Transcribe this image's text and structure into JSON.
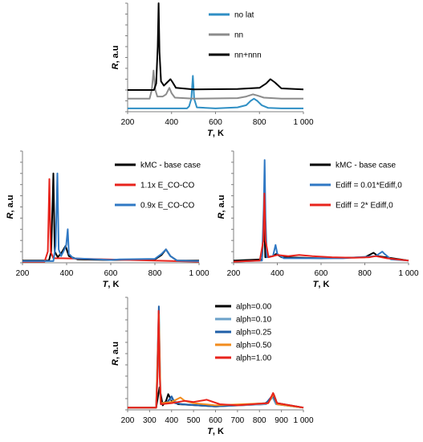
{
  "chart_data": [
    {
      "type": "line",
      "xlabel_italic": "T",
      "xlabel_unit": ", K",
      "ylabel_italic": "R",
      "ylabel_unit": ", a.u",
      "xlim": [
        200,
        1000
      ],
      "x_ticks": [
        "200",
        "400",
        "600",
        "800",
        "1 000"
      ],
      "y_ticks_labeled": false,
      "legend_position": "top-right",
      "series": [
        {
          "name": "no lat",
          "color": "#2f8fc4",
          "width": 2,
          "points": [
            [
              200,
              0.03
            ],
            [
              470,
              0.03
            ],
            [
              480,
              0.05
            ],
            [
              490,
              0.12
            ],
            [
              497,
              0.33
            ],
            [
              503,
              0.12
            ],
            [
              515,
              0.04
            ],
            [
              600,
              0.03
            ],
            [
              700,
              0.04
            ],
            [
              740,
              0.06
            ],
            [
              760,
              0.1
            ],
            [
              775,
              0.12
            ],
            [
              790,
              0.1
            ],
            [
              810,
              0.06
            ],
            [
              840,
              0.035
            ],
            [
              900,
              0.03
            ],
            [
              1000,
              0.03
            ]
          ]
        },
        {
          "name": "nn",
          "color": "#8c8c8c",
          "width": 2,
          "points": [
            [
              200,
              0.12
            ],
            [
              300,
              0.12
            ],
            [
              310,
              0.2
            ],
            [
              318,
              0.38
            ],
            [
              326,
              0.2
            ],
            [
              335,
              0.14
            ],
            [
              360,
              0.14
            ],
            [
              375,
              0.16
            ],
            [
              390,
              0.22
            ],
            [
              400,
              0.17
            ],
            [
              415,
              0.13
            ],
            [
              500,
              0.12
            ],
            [
              700,
              0.125
            ],
            [
              740,
              0.14
            ],
            [
              770,
              0.16
            ],
            [
              790,
              0.15
            ],
            [
              820,
              0.13
            ],
            [
              900,
              0.12
            ],
            [
              1000,
              0.12
            ]
          ]
        },
        {
          "name": "nn+nnn",
          "color": "#000000",
          "width": 2,
          "points": [
            [
              200,
              0.2
            ],
            [
              320,
              0.2
            ],
            [
              330,
              0.26
            ],
            [
              337,
              0.6
            ],
            [
              341,
              1.0
            ],
            [
              345,
              0.55
            ],
            [
              352,
              0.28
            ],
            [
              365,
              0.24
            ],
            [
              380,
              0.27
            ],
            [
              395,
              0.3
            ],
            [
              405,
              0.27
            ],
            [
              420,
              0.22
            ],
            [
              500,
              0.205
            ],
            [
              700,
              0.21
            ],
            [
              800,
              0.22
            ],
            [
              830,
              0.26
            ],
            [
              850,
              0.3
            ],
            [
              870,
              0.27
            ],
            [
              900,
              0.215
            ],
            [
              1000,
              0.205
            ]
          ]
        }
      ]
    },
    {
      "type": "line",
      "xlabel_italic": "T",
      "xlabel_unit": ", K",
      "ylabel_italic": "R",
      "ylabel_unit": ", a.u",
      "xlim": [
        200,
        1000
      ],
      "x_ticks": [
        "200",
        "400",
        "600",
        "800",
        "1 000"
      ],
      "y_ticks_labeled": false,
      "legend_position": "top-right",
      "series": [
        {
          "name": "kMC - base case",
          "color": "#000000",
          "width": 2,
          "points": [
            [
              200,
              0.02
            ],
            [
              320,
              0.02
            ],
            [
              330,
              0.1
            ],
            [
              340,
              0.8
            ],
            [
              346,
              0.1
            ],
            [
              360,
              0.05
            ],
            [
              380,
              0.1
            ],
            [
              395,
              0.15
            ],
            [
              410,
              0.06
            ],
            [
              450,
              0.03
            ],
            [
              600,
              0.025
            ],
            [
              800,
              0.03
            ],
            [
              830,
              0.07
            ],
            [
              850,
              0.12
            ],
            [
              870,
              0.06
            ],
            [
              900,
              0.02
            ],
            [
              1000,
              0.02
            ]
          ]
        },
        {
          "name": "1.1x E_CO-CO",
          "color": "#e8231c",
          "width": 2,
          "points": [
            [
              200,
              0.01
            ],
            [
              300,
              0.01
            ],
            [
              315,
              0.1
            ],
            [
              322,
              0.75
            ],
            [
              328,
              0.1
            ],
            [
              340,
              0.04
            ],
            [
              380,
              0.04
            ],
            [
              1000,
              0.01
            ]
          ]
        },
        {
          "name": "0.9x E_CO-CO",
          "color": "#2f78c4",
          "width": 2,
          "points": [
            [
              200,
              0.015
            ],
            [
              340,
              0.015
            ],
            [
              350,
              0.15
            ],
            [
              358,
              0.8
            ],
            [
              364,
              0.12
            ],
            [
              375,
              0.06
            ],
            [
              390,
              0.12
            ],
            [
              398,
              0.16
            ],
            [
              405,
              0.3
            ],
            [
              410,
              0.08
            ],
            [
              430,
              0.04
            ],
            [
              600,
              0.025
            ],
            [
              640,
              0.03
            ],
            [
              800,
              0.035
            ],
            [
              830,
              0.08
            ],
            [
              850,
              0.12
            ],
            [
              870,
              0.06
            ],
            [
              900,
              0.02
            ],
            [
              1000,
              0.015
            ]
          ]
        }
      ]
    },
    {
      "type": "line",
      "xlabel_italic": "T",
      "xlabel_unit": ", K",
      "ylabel_italic": "R",
      "ylabel_unit": ", a.u",
      "xlim": [
        200,
        1000
      ],
      "x_ticks": [
        "200",
        "400",
        "600",
        "800",
        "1 000"
      ],
      "y_ticks_labeled": false,
      "legend_position": "top-right",
      "series": [
        {
          "name": "kMC - base case",
          "color": "#000000",
          "width": 2,
          "points": [
            [
              200,
              0.02
            ],
            [
              330,
              0.03
            ],
            [
              340,
              0.4
            ],
            [
              345,
              0.05
            ],
            [
              380,
              0.06
            ],
            [
              395,
              0.08
            ],
            [
              420,
              0.05
            ],
            [
              600,
              0.04
            ],
            [
              800,
              0.05
            ],
            [
              840,
              0.09
            ],
            [
              860,
              0.06
            ],
            [
              1000,
              0.02
            ]
          ]
        },
        {
          "name": "Ediff = 0.01*Ediff,0",
          "color": "#2f78c4",
          "width": 2,
          "points": [
            [
              200,
              0.01
            ],
            [
              330,
              0.02
            ],
            [
              338,
              0.5
            ],
            [
              342,
              0.92
            ],
            [
              346,
              0.4
            ],
            [
              352,
              0.05
            ],
            [
              380,
              0.06
            ],
            [
              392,
              0.16
            ],
            [
              400,
              0.08
            ],
            [
              430,
              0.04
            ],
            [
              700,
              0.04
            ],
            [
              850,
              0.06
            ],
            [
              880,
              0.1
            ],
            [
              890,
              0.08
            ],
            [
              920,
              0.03
            ],
            [
              1000,
              0.02
            ]
          ]
        },
        {
          "name": "Ediff = 2* Ediff,0",
          "color": "#e8231c",
          "width": 2,
          "points": [
            [
              200,
              0.01
            ],
            [
              320,
              0.02
            ],
            [
              336,
              0.2
            ],
            [
              341,
              0.62
            ],
            [
              346,
              0.2
            ],
            [
              360,
              0.05
            ],
            [
              400,
              0.07
            ],
            [
              450,
              0.06
            ],
            [
              500,
              0.07
            ],
            [
              560,
              0.06
            ],
            [
              650,
              0.05
            ],
            [
              750,
              0.045
            ],
            [
              820,
              0.05
            ],
            [
              850,
              0.06
            ],
            [
              900,
              0.04
            ],
            [
              1000,
              0.02
            ]
          ]
        }
      ]
    },
    {
      "type": "line",
      "xlabel_italic": "T",
      "xlabel_unit": ", K",
      "ylabel_italic": "R",
      "ylabel_unit": ", a.u",
      "xlim": [
        200,
        1000
      ],
      "x_ticks": [
        "200",
        "300",
        "400",
        "500",
        "600",
        "700",
        "800",
        "900",
        "1 000"
      ],
      "y_ticks_labeled": false,
      "legend_position": "top-right",
      "series": [
        {
          "name": "alph=0.00",
          "color": "#000000",
          "width": 2,
          "points": [
            [
              200,
              0.02
            ],
            [
              330,
              0.02
            ],
            [
              345,
              0.2
            ],
            [
              360,
              0.04
            ],
            [
              375,
              0.08
            ],
            [
              385,
              0.14
            ],
            [
              400,
              0.08
            ],
            [
              430,
              0.05
            ],
            [
              600,
              0.03
            ],
            [
              820,
              0.05
            ],
            [
              850,
              0.09
            ],
            [
              865,
              0.14
            ],
            [
              880,
              0.06
            ],
            [
              1000,
              0.02
            ]
          ]
        },
        {
          "name": "alph=0.10",
          "color": "#6ba1c9",
          "width": 2,
          "points": [
            [
              200,
              0.02
            ],
            [
              330,
              0.02
            ],
            [
              342,
              0.6
            ],
            [
              350,
              0.05
            ],
            [
              380,
              0.06
            ],
            [
              395,
              0.1
            ],
            [
              410,
              0.08
            ],
            [
              440,
              0.05
            ],
            [
              600,
              0.03
            ],
            [
              830,
              0.05
            ],
            [
              860,
              0.11
            ],
            [
              875,
              0.05
            ],
            [
              1000,
              0.02
            ]
          ]
        },
        {
          "name": "alph=0.25",
          "color": "#1f5fa8",
          "width": 2,
          "points": [
            [
              200,
              0.02
            ],
            [
              330,
              0.02
            ],
            [
              342,
              0.92
            ],
            [
              350,
              0.06
            ],
            [
              380,
              0.07
            ],
            [
              400,
              0.12
            ],
            [
              415,
              0.06
            ],
            [
              450,
              0.05
            ],
            [
              600,
              0.03
            ],
            [
              830,
              0.06
            ],
            [
              860,
              0.13
            ],
            [
              880,
              0.05
            ],
            [
              1000,
              0.02
            ]
          ]
        },
        {
          "name": "alph=0.50",
          "color": "#f28c1e",
          "width": 2,
          "points": [
            [
              200,
              0.02
            ],
            [
              330,
              0.02
            ],
            [
              342,
              0.85
            ],
            [
              350,
              0.06
            ],
            [
              400,
              0.07
            ],
            [
              440,
              0.11
            ],
            [
              460,
              0.08
            ],
            [
              500,
              0.06
            ],
            [
              600,
              0.04
            ],
            [
              840,
              0.06
            ],
            [
              865,
              0.14
            ],
            [
              880,
              0.05
            ],
            [
              1000,
              0.02
            ]
          ]
        },
        {
          "name": "alph=1.00",
          "color": "#e8231c",
          "width": 2,
          "points": [
            [
              200,
              0.02
            ],
            [
              330,
              0.02
            ],
            [
              336,
              0.3
            ],
            [
              341,
              0.88
            ],
            [
              346,
              0.3
            ],
            [
              352,
              0.05
            ],
            [
              400,
              0.06
            ],
            [
              460,
              0.08
            ],
            [
              500,
              0.07
            ],
            [
              560,
              0.09
            ],
            [
              620,
              0.05
            ],
            [
              700,
              0.04
            ],
            [
              840,
              0.06
            ],
            [
              862,
              0.15
            ],
            [
              880,
              0.06
            ],
            [
              1000,
              0.02
            ]
          ]
        }
      ]
    }
  ]
}
